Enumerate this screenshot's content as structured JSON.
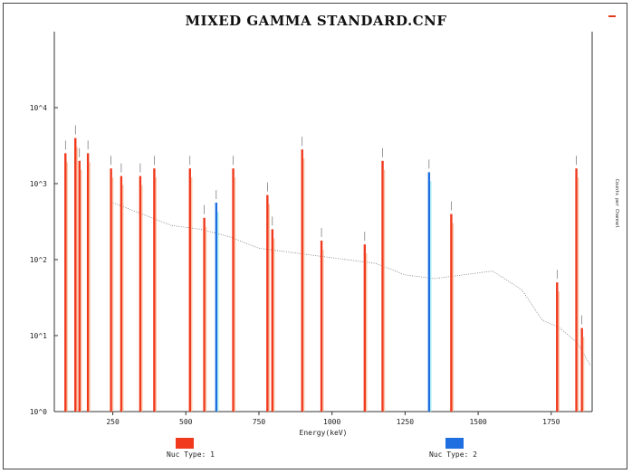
{
  "chart_data": {
    "type": "bar",
    "title": "MIXED GAMMA STANDARD.CNF",
    "xlabel": "Energy(keV)",
    "ylabel": "Counts per Channel",
    "xlim": [
      50,
      1890
    ],
    "ylim_log10": [
      0,
      5
    ],
    "yscale": "log",
    "x_ticks": [
      250,
      500,
      750,
      1000,
      1250,
      1500,
      1750
    ],
    "y_ticks": [
      {
        "exp": 0,
        "label": "10^0"
      },
      {
        "exp": 1,
        "label": "10^1"
      },
      {
        "exp": 2,
        "label": "10^2"
      },
      {
        "exp": 3,
        "label": "10^3"
      },
      {
        "exp": 4,
        "label": "10^4"
      }
    ],
    "peaks": [
      {
        "energy": 88,
        "height_exp": 3.4,
        "type": 1
      },
      {
        "energy": 122,
        "height_exp": 3.6,
        "type": 1
      },
      {
        "energy": 136,
        "height_exp": 3.3,
        "type": 1
      },
      {
        "energy": 165,
        "height_exp": 3.4,
        "type": 1
      },
      {
        "energy": 244,
        "height_exp": 3.2,
        "type": 1
      },
      {
        "energy": 279,
        "height_exp": 3.1,
        "type": 1
      },
      {
        "energy": 344,
        "height_exp": 3.1,
        "type": 1
      },
      {
        "energy": 392,
        "height_exp": 3.2,
        "type": 1
      },
      {
        "energy": 514,
        "height_exp": 3.2,
        "type": 1
      },
      {
        "energy": 563,
        "height_exp": 2.55,
        "type": 1
      },
      {
        "energy": 604,
        "height_exp": 2.75,
        "type": 2
      },
      {
        "energy": 662,
        "height_exp": 3.2,
        "type": 1
      },
      {
        "energy": 779,
        "height_exp": 2.85,
        "type": 1
      },
      {
        "energy": 796,
        "height_exp": 2.4,
        "type": 1
      },
      {
        "energy": 898,
        "height_exp": 3.45,
        "type": 1
      },
      {
        "energy": 964,
        "height_exp": 2.25,
        "type": 1
      },
      {
        "energy": 1112,
        "height_exp": 2.2,
        "type": 1
      },
      {
        "energy": 1173,
        "height_exp": 3.3,
        "type": 1
      },
      {
        "energy": 1332,
        "height_exp": 3.15,
        "type": 2
      },
      {
        "energy": 1408,
        "height_exp": 2.6,
        "type": 1
      },
      {
        "energy": 1836,
        "height_exp": 3.2,
        "type": 1
      },
      {
        "energy": 1770,
        "height_exp": 1.7,
        "type": 1
      },
      {
        "energy": 1855,
        "height_exp": 1.1,
        "type": 1
      }
    ],
    "continuum": [
      [
        250,
        2.75
      ],
      [
        350,
        2.6
      ],
      [
        450,
        2.45
      ],
      [
        550,
        2.4
      ],
      [
        650,
        2.3
      ],
      [
        750,
        2.15
      ],
      [
        850,
        2.1
      ],
      [
        950,
        2.05
      ],
      [
        1050,
        2.0
      ],
      [
        1150,
        1.95
      ],
      [
        1250,
        1.8
      ],
      [
        1350,
        1.75
      ],
      [
        1450,
        1.8
      ],
      [
        1550,
        1.85
      ],
      [
        1650,
        1.6
      ],
      [
        1720,
        1.2
      ],
      [
        1780,
        1.1
      ],
      [
        1840,
        0.9
      ],
      [
        1885,
        0.6
      ]
    ],
    "legend": [
      {
        "label": "Nuc Type: 1",
        "color": "#f0391d"
      },
      {
        "label": "Nuc Type: 2",
        "color": "#1f6fe0"
      }
    ],
    "legend_placement": "bottom",
    "grid": false
  }
}
